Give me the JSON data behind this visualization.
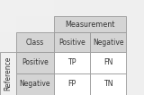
{
  "title_measurement": "Measurement",
  "col_header": [
    "Class",
    "Positive",
    "Negative"
  ],
  "row_header": [
    "Positive",
    "Negative"
  ],
  "cells": [
    [
      "TP",
      "FN"
    ],
    [
      "FP",
      "TN"
    ]
  ],
  "side_label": "Reference",
  "bg_header_color": "#d4d4d4",
  "bg_cell_color": "#ffffff",
  "bg_empty_color": "#f0f0f0",
  "border_color": "#999999",
  "text_color": "#333333",
  "figsize": [
    1.6,
    1.06
  ],
  "dpi": 100,
  "fig_bg": "#efefef"
}
